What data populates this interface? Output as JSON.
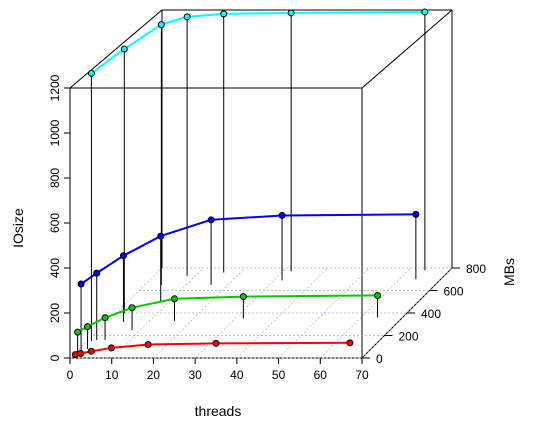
{
  "chart_data": {
    "type": "scatter3d",
    "xlabel": "threads",
    "ylabel": "MBs",
    "zlabel": "IOsize",
    "xlim": [
      0,
      70
    ],
    "ylim": [
      0,
      800
    ],
    "zlim": [
      0,
      1200
    ],
    "x_ticks": [
      "0",
      "10",
      "20",
      "30",
      "40",
      "50",
      "60",
      "70"
    ],
    "y_ticks": [
      "0",
      "200",
      "400",
      "600",
      "800"
    ],
    "z_ticks": [
      "0",
      "200",
      "400",
      "600",
      "800",
      "1000",
      "1200"
    ],
    "grid": true,
    "series": [
      {
        "color": "#ff0000",
        "points": [
          [
            1,
            10,
            10
          ],
          [
            2,
            20,
            10
          ],
          [
            4,
            40,
            10
          ],
          [
            8,
            70,
            10
          ],
          [
            16,
            100,
            10
          ],
          [
            32,
            110,
            10
          ],
          [
            64,
            115,
            10
          ]
        ]
      },
      {
        "color": "#00cc00",
        "points": [
          [
            1,
            30,
            100
          ],
          [
            2,
            80,
            100
          ],
          [
            4,
            160,
            100
          ],
          [
            8,
            250,
            100
          ],
          [
            16,
            330,
            100
          ],
          [
            32,
            350,
            100
          ],
          [
            64,
            360,
            100
          ]
        ]
      },
      {
        "color": "#0000ff",
        "points": [
          [
            1,
            60,
            300
          ],
          [
            2,
            160,
            300
          ],
          [
            4,
            320,
            300
          ],
          [
            8,
            500,
            300
          ],
          [
            16,
            650,
            300
          ],
          [
            32,
            690,
            300
          ],
          [
            64,
            700,
            300
          ]
        ]
      },
      {
        "color": "#00ffff",
        "points": [
          [
            1,
            150,
            1200
          ],
          [
            2,
            400,
            1200
          ],
          [
            4,
            650,
            1200
          ],
          [
            8,
            730,
            1200
          ],
          [
            16,
            760,
            1200
          ],
          [
            32,
            770,
            1200
          ],
          [
            64,
            780,
            1200
          ]
        ]
      }
    ]
  }
}
